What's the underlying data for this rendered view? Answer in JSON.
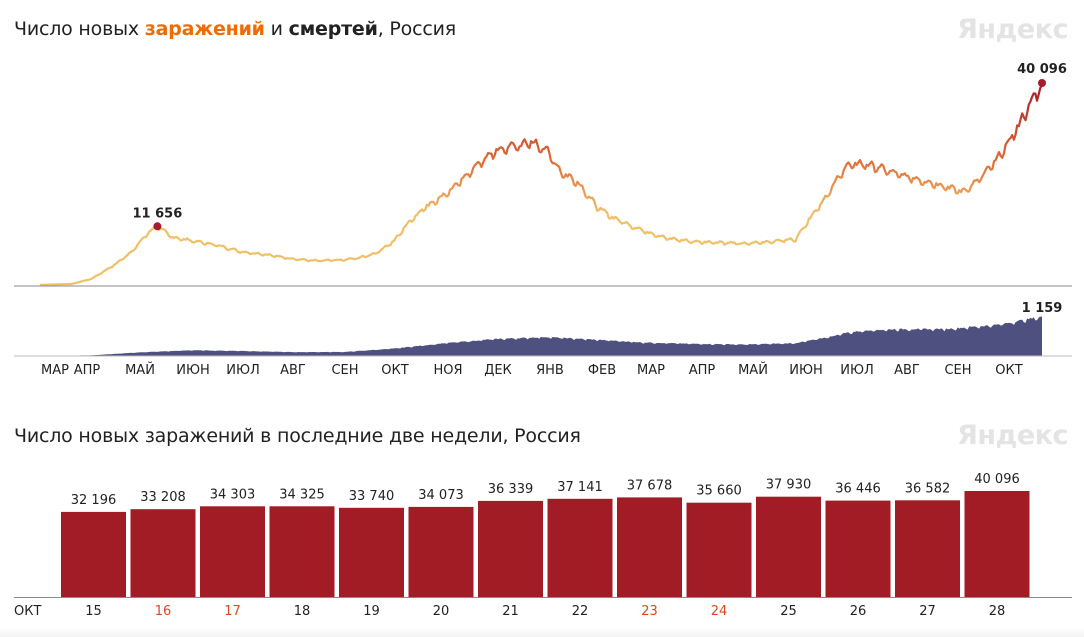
{
  "header": {
    "title_prefix": "Число новых ",
    "title_infections": "заражений",
    "title_mid": " и ",
    "title_deaths": "смертей",
    "title_suffix": ", Россия",
    "brand": "Яндекс"
  },
  "header2": {
    "title": "Число новых заражений в последние две недели, Россия",
    "brand": "Яндекс"
  },
  "colors": {
    "infections_low": "#f0c068",
    "infections_high": "#a51d28",
    "deaths": "#4e5080",
    "bars": "#a11c24",
    "highlight_day": "#e0481c",
    "peak_dot": "#a51d28"
  },
  "chart_data": [
    {
      "type": "line",
      "title": "Число новых заражений и смертей, Россия",
      "month_labels": [
        "МАР",
        "АПР",
        "МАЙ",
        "ИЮН",
        "ИЮЛ",
        "АВГ",
        "СЕН",
        "ОКТ",
        "НОЯ",
        "ДЕК",
        "ЯНВ",
        "ФЕВ",
        "МАР",
        "АПР",
        "МАЙ",
        "ИЮН",
        "ИЮЛ",
        "АВГ",
        "СЕН",
        "ОКТ"
      ],
      "series": [
        {
          "kind": "infections",
          "x": [
            "2020-03-01",
            "2020-03-20",
            "2020-04-01",
            "2020-04-15",
            "2020-04-25",
            "2020-05-06",
            "2020-05-11",
            "2020-05-20",
            "2020-06-01",
            "2020-06-15",
            "2020-07-01",
            "2020-07-15",
            "2020-08-01",
            "2020-08-15",
            "2020-09-01",
            "2020-09-10",
            "2020-09-20",
            "2020-10-01",
            "2020-10-10",
            "2020-10-20",
            "2020-11-01",
            "2020-11-10",
            "2020-11-20",
            "2020-12-01",
            "2020-12-10",
            "2020-12-24",
            "2021-01-01",
            "2021-01-10",
            "2021-01-20",
            "2021-02-01",
            "2021-02-10",
            "2021-02-20",
            "2021-03-01",
            "2021-03-15",
            "2021-04-01",
            "2021-04-15",
            "2021-05-01",
            "2021-05-15",
            "2021-06-01",
            "2021-06-10",
            "2021-06-20",
            "2021-07-01",
            "2021-07-10",
            "2021-07-20",
            "2021-08-01",
            "2021-08-15",
            "2021-09-01",
            "2021-09-10",
            "2021-09-20",
            "2021-10-01",
            "2021-10-10",
            "2021-10-20",
            "2021-10-28"
          ],
          "y": [
            30,
            200,
            1200,
            4000,
            6500,
            10600,
            11656,
            9500,
            8800,
            8000,
            6600,
            6100,
            5200,
            4800,
            5000,
            5400,
            6300,
            8700,
            12500,
            15500,
            18000,
            20500,
            23800,
            26500,
            27500,
            28300,
            27000,
            22500,
            20500,
            15500,
            13500,
            12000,
            10800,
            9300,
            8600,
            8500,
            8200,
            8600,
            9100,
            13500,
            17800,
            23500,
            24200,
            23500,
            22100,
            20900,
            19500,
            18500,
            21000,
            25000,
            29500,
            35500,
            40096
          ]
        },
        {
          "kind": "deaths",
          "x": [
            "2020-03-01",
            "2020-04-01",
            "2020-05-01",
            "2020-06-01",
            "2020-07-01",
            "2020-08-01",
            "2020-09-01",
            "2020-10-01",
            "2020-11-01",
            "2020-12-01",
            "2021-01-01",
            "2021-02-01",
            "2021-03-01",
            "2021-04-01",
            "2021-05-01",
            "2021-06-01",
            "2021-06-20",
            "2021-07-01",
            "2021-07-15",
            "2021-08-01",
            "2021-09-01",
            "2021-10-01",
            "2021-10-28"
          ],
          "y": [
            1,
            20,
            110,
            170,
            150,
            115,
            120,
            220,
            380,
            500,
            560,
            480,
            400,
            360,
            340,
            380,
            550,
            680,
            760,
            790,
            800,
            920,
            1159
          ]
        }
      ],
      "annotations": [
        {
          "date": "2020-05-11",
          "label": "11 656"
        },
        {
          "date": "2021-10-28",
          "label": "40 096"
        },
        {
          "date": "2021-10-28",
          "label": "1 159"
        }
      ]
    },
    {
      "type": "bar",
      "title": "Число новых заражений в последние две недели, Россия",
      "month_label": "ОКТ",
      "categories": [
        "15",
        "16",
        "17",
        "18",
        "19",
        "20",
        "21",
        "22",
        "23",
        "24",
        "25",
        "26",
        "27",
        "28"
      ],
      "values": [
        32196,
        33208,
        34303,
        34325,
        33740,
        34073,
        36339,
        37141,
        37678,
        35660,
        37930,
        36446,
        36582,
        40096
      ],
      "value_labels": [
        "32 196",
        "33 208",
        "34 303",
        "34 325",
        "33 740",
        "34 073",
        "36 339",
        "37 141",
        "37 678",
        "35 660",
        "37 930",
        "36 446",
        "36 582",
        "40 096"
      ],
      "highlighted_days": [
        "16",
        "17",
        "23",
        "24"
      ],
      "ylim": [
        0,
        40096
      ]
    }
  ]
}
